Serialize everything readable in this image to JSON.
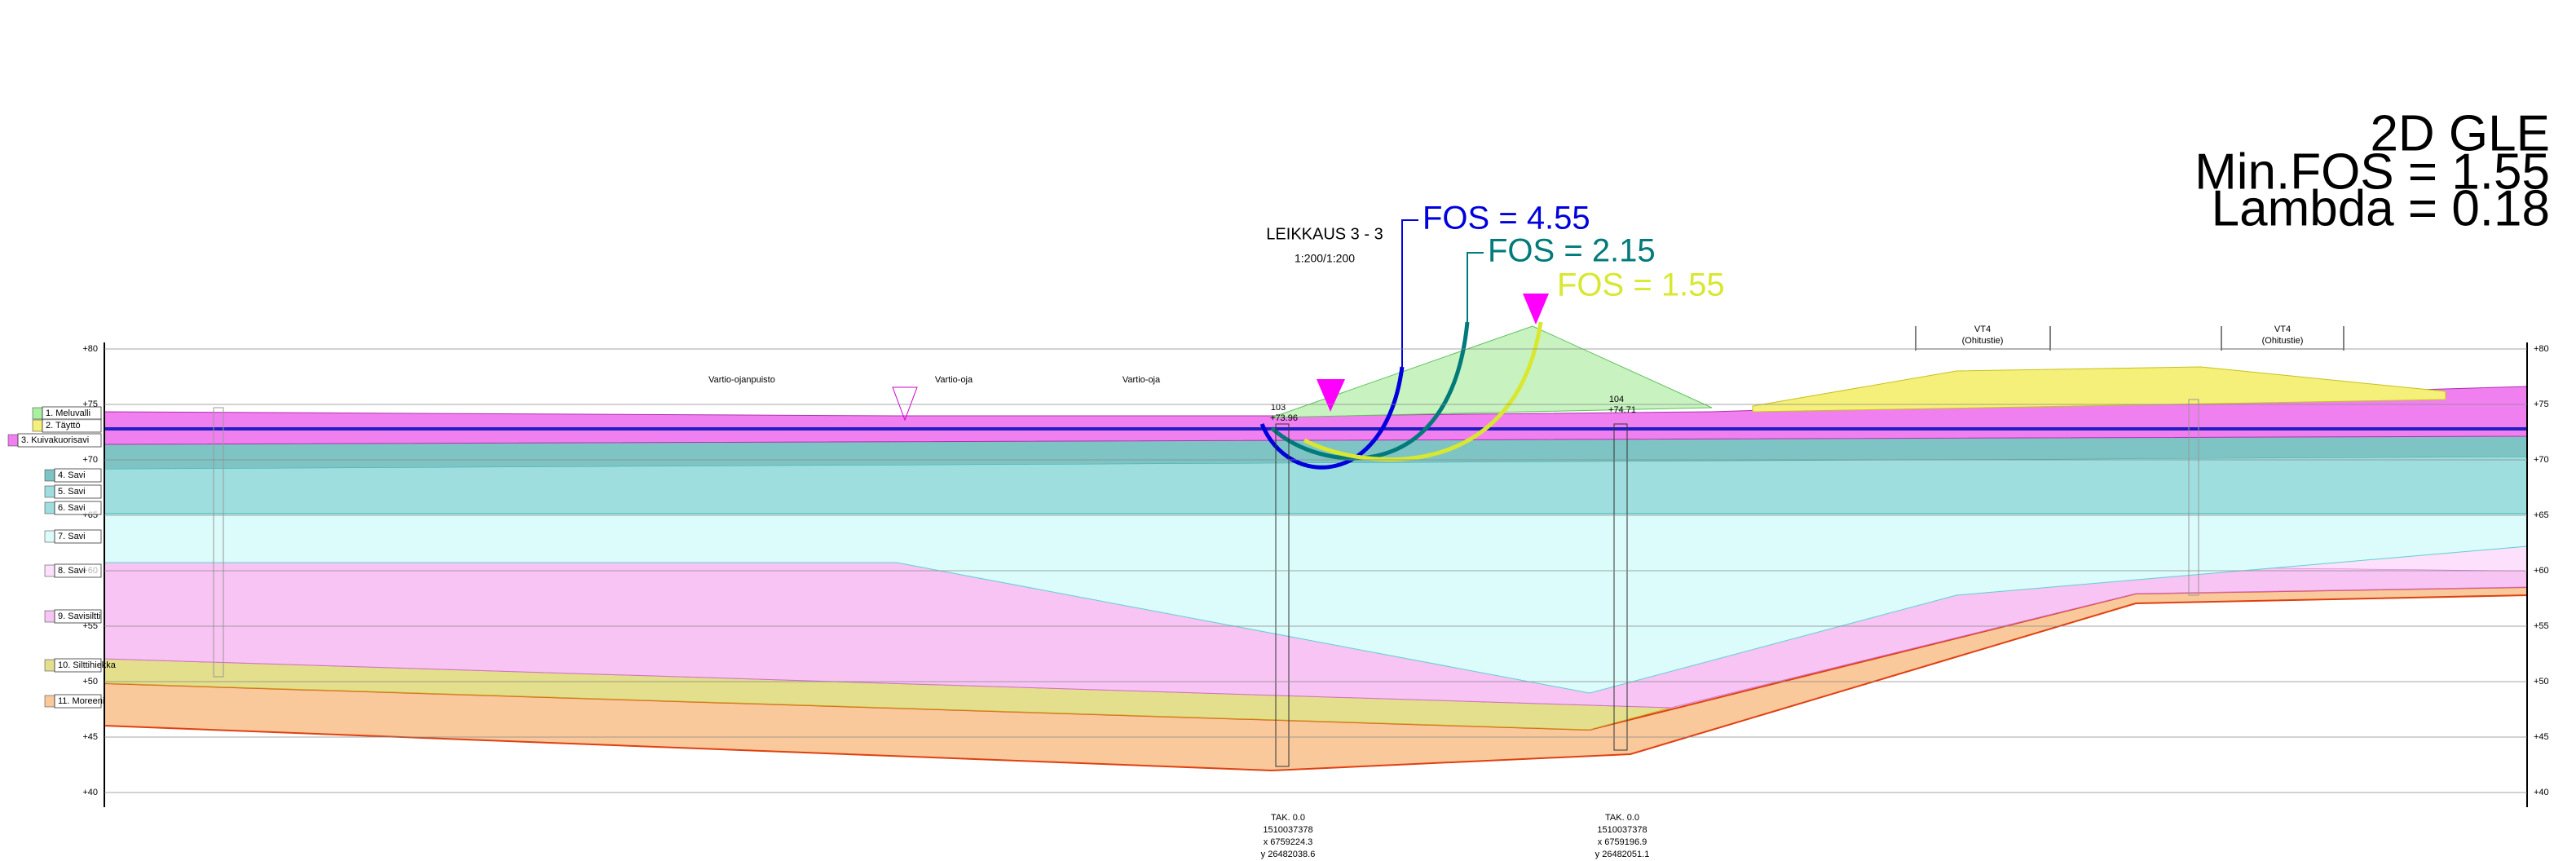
{
  "header": {
    "method": "2D GLE",
    "min_fos": "Min.FOS = 1.55",
    "lambda": "Lambda = 0.18"
  },
  "section": {
    "title": "LEIKKAUS 3 - 3",
    "scale": "1:200/1:200"
  },
  "slip_surfaces": [
    {
      "label": "FOS = 4.55",
      "color": "#0000dd"
    },
    {
      "label": "FOS = 2.15",
      "color": "#007a7a"
    },
    {
      "label": "FOS = 1.55",
      "color": "#d8e830"
    }
  ],
  "layers": [
    "1. Meluvalli",
    "2. Täyttö",
    "3. Kuivakuorisavi",
    "4. Savi",
    "5. Savi",
    "6. Savi",
    "7. Savi",
    "8. Savi",
    "9. Savisiltti",
    "10. Silttihiekka",
    "11. Moreeni"
  ],
  "elevation_ticks": [
    {
      "value": 80,
      "label": "+80"
    },
    {
      "value": 75,
      "label": "+75"
    },
    {
      "value": 70,
      "label": "+70"
    },
    {
      "value": 65,
      "label": "+65"
    },
    {
      "value": 60,
      "label": "+60"
    },
    {
      "value": 55,
      "label": "+55"
    },
    {
      "value": 50,
      "label": "+50"
    },
    {
      "value": 45,
      "label": "+45"
    },
    {
      "value": 40,
      "label": "+40"
    }
  ],
  "places": [
    "Vartio-ojanpuisto",
    "Vartio-oja",
    "Vartio-oja",
    "VT4",
    "(Ohitustie)",
    "VT4",
    "(Ohitustie)"
  ],
  "boreholes": [
    {
      "id": "103",
      "top": "+73.96"
    },
    {
      "id": "104",
      "top": "+74.71"
    }
  ],
  "coordinates": [
    [
      "TAK. 0.0",
      "1510037378",
      "x 6759224.3",
      "y 26482038.6"
    ],
    [
      "TAK. 0.0",
      "1510037378",
      "x 6759196.9",
      "y 26482051.1"
    ]
  ]
}
